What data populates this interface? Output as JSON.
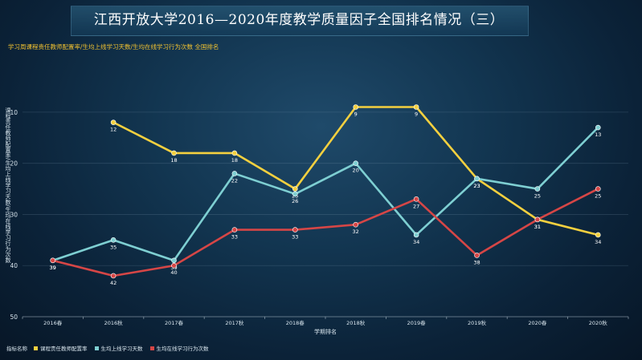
{
  "title": "江西开放大学2016—2020年度教学质量因子全国排名情况（三）",
  "subtitle": "学习周课程责任教师配置率/生均上线学习天数/生均在线学习行为次数 全国排名",
  "chart_data": {
    "type": "line",
    "categories": [
      "2016春",
      "2016秋",
      "2017春",
      "2017秋",
      "2018春",
      "2018秋",
      "2019春",
      "2019秋",
      "2020春",
      "2020秋"
    ],
    "xlabel": "学期排名",
    "ylabel": "课程责任教师配置率/生均上线学习天数/生均在线学习行为次数",
    "ylim": [
      50,
      5
    ],
    "yticks": [
      10,
      20,
      30,
      40,
      50
    ],
    "y_inverted": true,
    "grid": true,
    "legend_title": "指标名称",
    "legend_position": "bottom-left",
    "series": [
      {
        "name": "课程责任教师配置率",
        "color": "#f4d03f",
        "values": [
          null,
          12,
          18,
          18,
          25,
          9,
          9,
          23,
          31,
          34
        ]
      },
      {
        "name": "生均上线学习天数",
        "color": "#7ecfd2",
        "values": [
          39,
          35,
          39,
          22,
          26,
          20,
          34,
          23,
          25,
          13
        ]
      },
      {
        "name": "生均在线学习行为次数",
        "color": "#d64646",
        "values": [
          39,
          42,
          40,
          33,
          33,
          32,
          27,
          38,
          31,
          25
        ]
      }
    ]
  }
}
